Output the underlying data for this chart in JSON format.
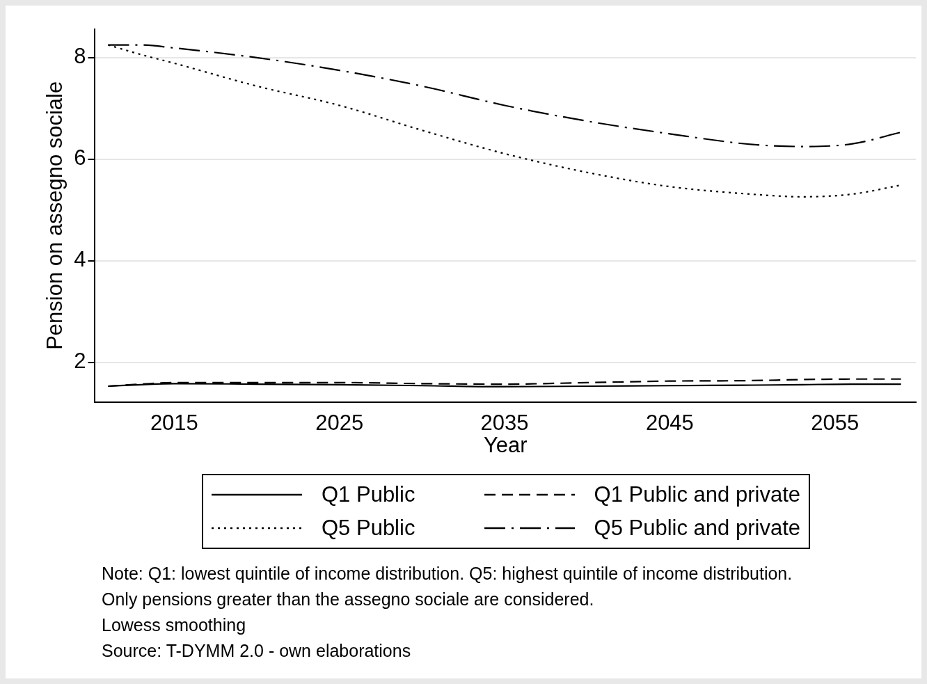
{
  "chart_data": {
    "type": "line",
    "xlabel": "Year",
    "ylabel": "Pension on assegno sociale",
    "x": [
      2011,
      2013,
      2015,
      2020,
      2025,
      2030,
      2035,
      2040,
      2045,
      2050,
      2053,
      2056,
      2059
    ],
    "series": [
      {
        "name": "Q1 Public",
        "color": "#000000",
        "line_style": "solid",
        "values": [
          1.53,
          1.56,
          1.58,
          1.57,
          1.56,
          1.54,
          1.52,
          1.53,
          1.54,
          1.55,
          1.56,
          1.57,
          1.57
        ]
      },
      {
        "name": "Q1 Public and private",
        "color": "#000000",
        "line_style": "dashed",
        "values": [
          1.53,
          1.57,
          1.6,
          1.6,
          1.6,
          1.58,
          1.57,
          1.6,
          1.63,
          1.64,
          1.66,
          1.67,
          1.67
        ]
      },
      {
        "name": "Q5 Public",
        "color": "#000000",
        "line_style": "dotted",
        "values": [
          8.25,
          8.06,
          7.89,
          7.44,
          7.06,
          6.57,
          6.11,
          5.74,
          5.46,
          5.31,
          5.26,
          5.31,
          5.49
        ]
      },
      {
        "name": "Q5 Public and private",
        "color": "#000000",
        "line_style": "dashdot",
        "values": [
          8.25,
          8.25,
          8.19,
          8.0,
          7.75,
          7.44,
          7.06,
          6.75,
          6.5,
          6.29,
          6.25,
          6.3,
          6.53
        ]
      }
    ],
    "xlim": [
      2010.2,
      2059.9
    ],
    "xticks": [
      2015,
      2025,
      2035,
      2045,
      2055
    ],
    "ylim": [
      1.22,
      8.56
    ],
    "yticks": [
      2,
      4,
      6,
      8
    ],
    "grid": "y",
    "marker": "none",
    "legend": "bottom",
    "annotations": [
      "Note: Q1: lowest quintile of income distribution. Q5: highest quintile of income distribution.",
      "Only pensions greater than the assegno sociale are considered.",
      "Lowess smoothing",
      "Source: T-DYMM 2.0 - own elaborations"
    ]
  }
}
